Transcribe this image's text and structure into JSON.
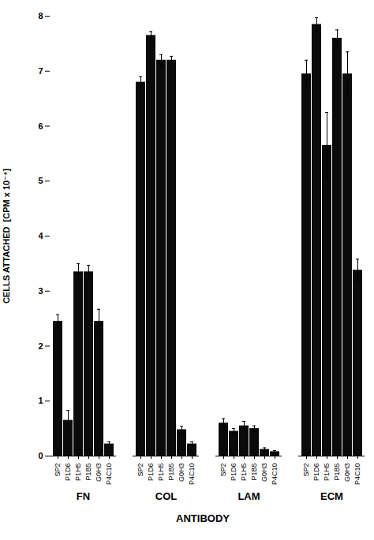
{
  "chart_data": {
    "type": "bar",
    "xlabel": "ANTIBODY",
    "ylabel": "CELLS ATTACHED  [CPM x 10⁻⁴]",
    "categories": [
      "FN",
      "COL",
      "LAM",
      "ECM"
    ],
    "series": [
      {
        "name": "SP2",
        "color": "#0a0a0a",
        "values": [
          2.45,
          6.8,
          0.6,
          6.95
        ],
        "errors": [
          0.12,
          0.1,
          0.08,
          0.25
        ]
      },
      {
        "name": "P1D6",
        "color": "#0a0a0a",
        "values": [
          0.65,
          7.65,
          0.45,
          7.85
        ],
        "errors": [
          0.18,
          0.07,
          0.05,
          0.12
        ]
      },
      {
        "name": "P1H5",
        "color": "#0a0a0a",
        "values": [
          3.35,
          7.2,
          0.55,
          5.65
        ],
        "errors": [
          0.15,
          0.1,
          0.08,
          0.6
        ]
      },
      {
        "name": "P1B5",
        "color": "#0a0a0a",
        "values": [
          3.35,
          7.2,
          0.5,
          7.6
        ],
        "errors": [
          0.12,
          0.07,
          0.05,
          0.15
        ]
      },
      {
        "name": "G0H3",
        "color": "#0a0a0a",
        "values": [
          2.45,
          0.48,
          0.12,
          6.95
        ],
        "errors": [
          0.22,
          0.06,
          0.03,
          0.4
        ]
      },
      {
        "name": "P4C10",
        "color": "#0a0a0a",
        "values": [
          0.22,
          0.22,
          0.08,
          3.38
        ],
        "errors": [
          0.04,
          0.04,
          0.02,
          0.2
        ]
      }
    ],
    "ylim": [
      0,
      8
    ],
    "yticks": [
      0,
      1,
      2,
      3,
      4,
      5,
      6,
      7,
      8
    ]
  }
}
